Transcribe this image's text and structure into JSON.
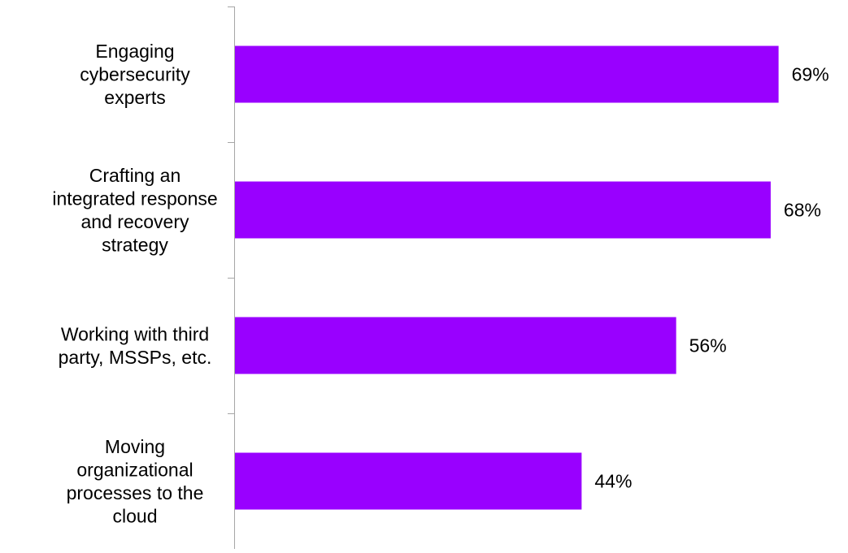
{
  "chart_data": {
    "type": "bar",
    "orientation": "horizontal",
    "categories": [
      "Engaging cybersecurity experts",
      "Crafting an integrated response and recovery strategy",
      "Working with third party, MSSPs, etc.",
      "Moving organizational processes to the cloud"
    ],
    "category_lines": [
      [
        "Engaging",
        "cybersecurity",
        "experts"
      ],
      [
        "Crafting an",
        "integrated response",
        "and recovery",
        "strategy"
      ],
      [
        "Working with third",
        "party, MSSPs, etc."
      ],
      [
        "Moving",
        "organizational",
        "processes to the",
        "cloud"
      ]
    ],
    "values": [
      69,
      68,
      56,
      44
    ],
    "value_labels": [
      "69%",
      "68%",
      "56%",
      "44%"
    ],
    "unit": "%",
    "xlim": [
      0,
      100
    ],
    "grid": false,
    "legend": "none",
    "title": "",
    "xlabel": "",
    "ylabel": "",
    "colors": {
      "bar": "#9900ff",
      "axis": "#a6a6a6",
      "text": "#000000"
    }
  }
}
